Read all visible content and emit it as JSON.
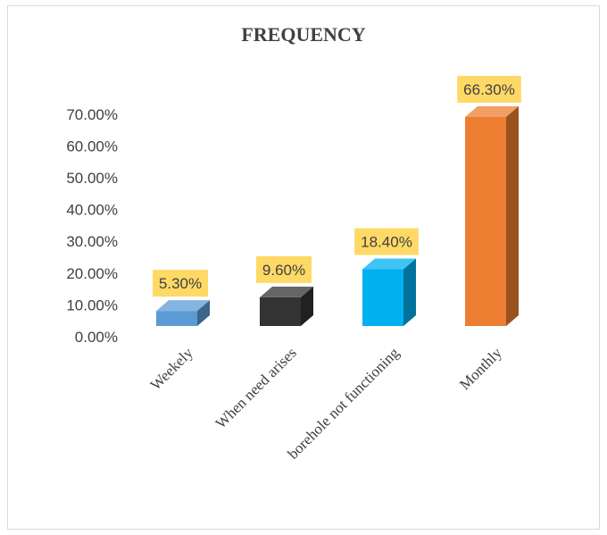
{
  "chart_data": {
    "type": "bar",
    "title": "FREQUENCY",
    "categories": [
      "Weekely",
      "When need arises",
      "borehole not functioning",
      "Monthly"
    ],
    "values": [
      5.3,
      9.6,
      18.4,
      66.3
    ],
    "data_labels": [
      "5.30%",
      "9.60%",
      "18.40%",
      "66.30%"
    ],
    "y_ticks": [
      "0.00%",
      "10.00%",
      "20.00%",
      "30.00%",
      "40.00%",
      "50.00%",
      "60.00%",
      "70.00%"
    ],
    "ylim": [
      0,
      70
    ],
    "grid": false,
    "legend": "none",
    "bar_colors": [
      "#5b9bd5",
      "#333333",
      "#00b0f0",
      "#ed7d31"
    ],
    "label_background": "#ffd966"
  }
}
